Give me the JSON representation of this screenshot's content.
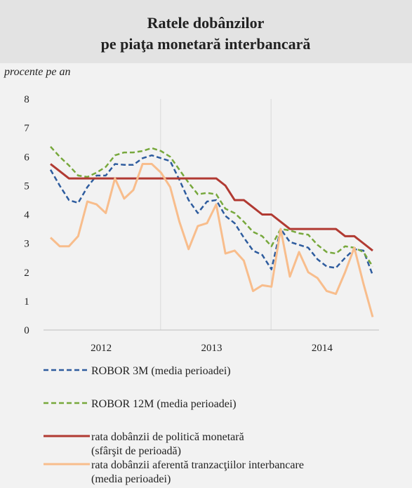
{
  "chart_data": {
    "type": "line",
    "title": "Ratele dobânzilor\npe piaţa monetară interbancară",
    "subtitle": "procente pe an",
    "categories": [
      null,
      null,
      null,
      null,
      null,
      "2012",
      null,
      null,
      null,
      null,
      null,
      null,
      null,
      null,
      null,
      null,
      null,
      "2013",
      null,
      null,
      null,
      null,
      null,
      null,
      null,
      null,
      null,
      null,
      null,
      "2014",
      null,
      null,
      null,
      null,
      null,
      null
    ],
    "ylim": [
      0,
      8
    ],
    "yticks": [
      0,
      1,
      2,
      3,
      4,
      5,
      6,
      7,
      8
    ],
    "grid": true,
    "series": [
      {
        "name": "ROBOR 3M (media perioadei)",
        "color": "#2e5c9e",
        "dash": true,
        "values": [
          5.55,
          5.0,
          4.5,
          4.4,
          4.95,
          5.35,
          5.35,
          5.75,
          5.72,
          5.72,
          5.95,
          6.05,
          5.95,
          5.85,
          5.2,
          4.5,
          4.05,
          4.45,
          4.5,
          3.95,
          3.7,
          3.2,
          2.75,
          2.6,
          2.1,
          3.5,
          3.05,
          2.95,
          2.85,
          2.45,
          2.2,
          2.15,
          2.5,
          2.8,
          2.75,
          1.9
        ]
      },
      {
        "name": "ROBOR 12M (media perioadei)",
        "color": "#77a83c",
        "dash": true,
        "values": [
          6.35,
          6.0,
          5.7,
          5.35,
          5.3,
          5.45,
          5.65,
          6.05,
          6.15,
          6.15,
          6.2,
          6.3,
          6.2,
          6.0,
          5.55,
          5.1,
          4.7,
          4.75,
          4.7,
          4.2,
          4.05,
          3.75,
          3.4,
          3.25,
          2.9,
          3.5,
          3.45,
          3.35,
          3.3,
          2.95,
          2.7,
          2.65,
          2.9,
          2.85,
          2.7,
          2.2
        ]
      },
      {
        "name": "rata dobânzii de politică monetară\n(sfârşit de perioadă)",
        "color": "#b13a32",
        "dash": false,
        "values": [
          5.75,
          5.5,
          5.25,
          5.25,
          5.25,
          5.25,
          5.25,
          5.25,
          5.25,
          5.25,
          5.25,
          5.25,
          5.25,
          5.25,
          5.25,
          5.25,
          5.25,
          5.25,
          5.25,
          5.0,
          4.5,
          4.5,
          4.25,
          4.0,
          4.0,
          3.75,
          3.5,
          3.5,
          3.5,
          3.5,
          3.5,
          3.5,
          3.25,
          3.25,
          3.0,
          2.75
        ]
      },
      {
        "name": "rata dobânzii aferentă tranzacţiilor interbancare\n(media perioadei)",
        "color": "#f8bd8c",
        "dash": false,
        "values": [
          3.2,
          2.9,
          2.9,
          3.25,
          4.45,
          4.35,
          4.05,
          5.25,
          4.55,
          4.85,
          5.75,
          5.75,
          5.45,
          4.95,
          3.75,
          2.8,
          3.6,
          3.7,
          4.35,
          2.65,
          2.75,
          2.4,
          1.35,
          1.55,
          1.5,
          3.5,
          1.85,
          2.7,
          2.0,
          1.8,
          1.35,
          1.25,
          2.0,
          2.85,
          1.6,
          0.45
        ]
      }
    ]
  }
}
